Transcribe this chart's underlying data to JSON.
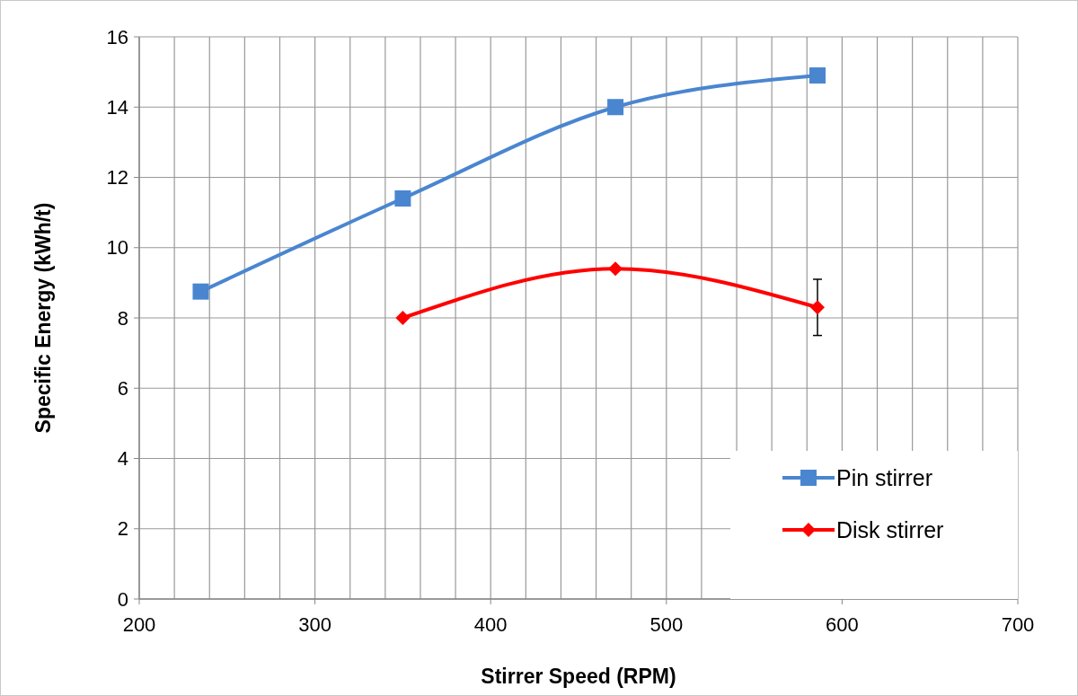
{
  "chart_data": {
    "type": "line",
    "xlabel": "Stirrer Speed (RPM)",
    "ylabel": "Specific Energy (kWh/t)",
    "xlim": [
      200,
      700
    ],
    "xticks": [
      200,
      {
        "value": 220,
        "label": null
      },
      {
        "value": 240,
        "label": null
      },
      {
        "value": 260,
        "label": null
      },
      {
        "value": 280,
        "label": null
      },
      300,
      {
        "value": 320,
        "label": null
      },
      {
        "value": 340,
        "label": null
      },
      {
        "value": 360,
        "label": null
      },
      {
        "value": 380,
        "label": null
      },
      400,
      {
        "value": 420,
        "label": null
      },
      {
        "value": 440,
        "label": null
      },
      {
        "value": 460,
        "label": null
      },
      {
        "value": 480,
        "label": null
      },
      500,
      {
        "value": 520,
        "label": null
      },
      {
        "value": 540,
        "label": null
      },
      {
        "value": 560,
        "label": null
      },
      {
        "value": 580,
        "label": null
      },
      600,
      {
        "value": 620,
        "label": null
      },
      {
        "value": 640,
        "label": null
      },
      {
        "value": 660,
        "label": null
      },
      {
        "value": 680,
        "label": null
      },
      700
    ],
    "ylim": [
      0,
      16
    ],
    "yticks": [
      0,
      2,
      4,
      6,
      8,
      10,
      12,
      14,
      16
    ],
    "grid": true,
    "legend": "bottom right",
    "series": [
      {
        "name": "Pin stirrer",
        "color": "#4a86d0",
        "marker": "square",
        "x": [
          235,
          350,
          471,
          586
        ],
        "values": [
          8.75,
          11.4,
          14.0,
          14.9
        ]
      },
      {
        "name": "Disk stirrer",
        "color": "#ff0000",
        "marker": "diamond",
        "x": [
          350,
          471,
          586
        ],
        "values": [
          8.0,
          9.4,
          8.3
        ],
        "errors": [
          null,
          null,
          [
            7.5,
            9.1
          ]
        ]
      }
    ]
  }
}
